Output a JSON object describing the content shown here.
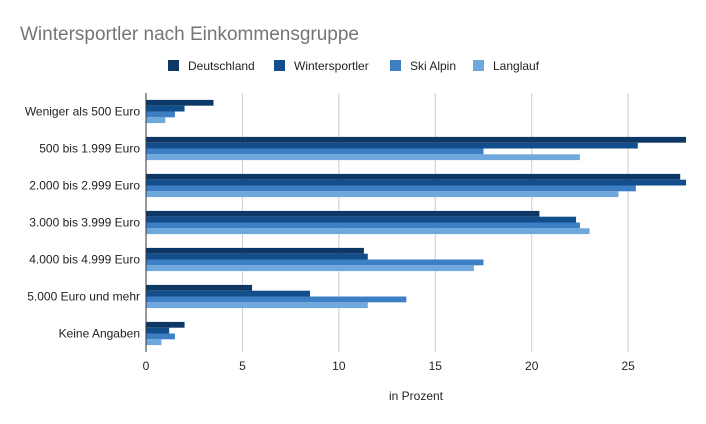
{
  "chart_data": {
    "type": "bar",
    "orientation": "horizontal",
    "title": "Wintersportler nach Einkommensgruppe",
    "xlabel": "in Prozent",
    "ylabel": "",
    "xlim": [
      0,
      28
    ],
    "xticks": [
      0,
      5,
      10,
      15,
      20,
      25
    ],
    "grid": true,
    "legend_position": "top",
    "categories": [
      "Weniger als 500 Euro",
      "500 bis 1.999 Euro",
      "2.000 bis 2.999 Euro",
      "3.000 bis 3.999 Euro",
      "4.000 bis 4.999 Euro",
      "5.000 Euro und mehr",
      "Keine Angaben"
    ],
    "series": [
      {
        "name": "Deutschland",
        "color": "#0d3764",
        "values": [
          3.5,
          28,
          27.7,
          20.4,
          11.3,
          5.5,
          2
        ]
      },
      {
        "name": "Wintersportler",
        "color": "#124d8c",
        "values": [
          2,
          25.5,
          28,
          22.3,
          11.5,
          8.5,
          1.2
        ]
      },
      {
        "name": "Ski Alpin",
        "color": "#3d7fc4",
        "values": [
          1.5,
          17.5,
          25.4,
          22.5,
          17.5,
          13.5,
          1.5
        ]
      },
      {
        "name": "Langlauf",
        "color": "#6fa8dc",
        "values": [
          1,
          22.5,
          24.5,
          23,
          17,
          11.5,
          0.8
        ]
      }
    ]
  }
}
